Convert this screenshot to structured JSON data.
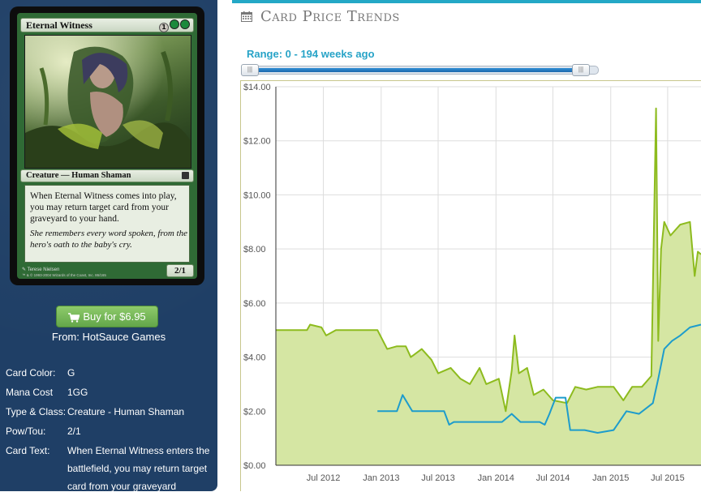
{
  "card_image": {
    "name": "Eternal Witness",
    "mana_cost_symbols": [
      "1",
      "G",
      "G"
    ],
    "type_line": "Creature — Human Shaman",
    "rules_text": "When Eternal Witness comes into play, you may return target card from your graveyard to your hand.",
    "flavor_text": "She remembers every word spoken, from the hero's oath to the baby's cry.",
    "power_toughness": "2/1",
    "artist": "Terese Nielsen",
    "copyright": "™ & © 1993-2004 Wizards of the Coast, Inc. 86/165"
  },
  "buy": {
    "label": "Buy for $6.95",
    "icon": "shopping-cart-icon",
    "from": "From: HotSauce Games"
  },
  "attributes": [
    {
      "label": "Card Color:",
      "value": "G"
    },
    {
      "label": "Mana Cost",
      "value": "1GG"
    },
    {
      "label": "Type & Class:",
      "value": "Creature - Human Shaman"
    },
    {
      "label": "Pow/Tou:",
      "value": "2/1"
    },
    {
      "label": "Card Text:",
      "value": "When Eternal Witness enters the battlefield, you may return target card from your graveyard"
    }
  ],
  "header": {
    "title": "Card Price Trends",
    "icon": "calendar-icon"
  },
  "range": {
    "label": "Range: 0 - 194 weeks ago",
    "min_weeks": 0,
    "max_weeks": 194,
    "selected_fraction": 1.0
  },
  "colors": {
    "accent": "#24a8c6",
    "paper_line": "#8dbb1e",
    "paper_fill": "#d5e6a3",
    "foil_line": "#1d9ccc",
    "sidebar_bg": "#1f3f66",
    "buy_button": "#74b858"
  },
  "chart_data": {
    "type": "area",
    "title": "",
    "xlabel": "",
    "ylabel": "",
    "ylim": [
      0,
      14
    ],
    "yticks": [
      "$0.00",
      "$2.00",
      "$4.00",
      "$6.00",
      "$8.00",
      "$10.00",
      "$12.00",
      "$14.00"
    ],
    "yticks_values": [
      0,
      2,
      4,
      6,
      8,
      10,
      12,
      14
    ],
    "xlim": [
      "2012-02-01",
      "2015-10-15"
    ],
    "xticks": [
      {
        "label": "Jul 2012",
        "date": "2012-07-01"
      },
      {
        "label": "Jan 2013",
        "date": "2013-01-01"
      },
      {
        "label": "Jul 2013",
        "date": "2013-07-01"
      },
      {
        "label": "Jan 2014",
        "date": "2014-01-01"
      },
      {
        "label": "Jul 2014",
        "date": "2014-07-01"
      },
      {
        "label": "Jan 2015",
        "date": "2015-01-01"
      },
      {
        "label": "Jul 2015",
        "date": "2015-07-01"
      }
    ],
    "grid": true,
    "series": [
      {
        "points": [
          [
            "2012-02-01",
            5.0
          ],
          [
            "2012-05-10",
            5.0
          ],
          [
            "2012-05-20",
            5.2
          ],
          [
            "2012-06-25",
            5.1
          ],
          [
            "2012-07-10",
            4.8
          ],
          [
            "2012-08-10",
            5.0
          ],
          [
            "2012-12-20",
            5.0
          ],
          [
            "2013-01-20",
            4.3
          ],
          [
            "2013-02-20",
            4.4
          ],
          [
            "2013-03-20",
            4.4
          ],
          [
            "2013-04-05",
            4.0
          ],
          [
            "2013-05-10",
            4.3
          ],
          [
            "2013-06-10",
            3.9
          ],
          [
            "2013-07-01",
            3.4
          ],
          [
            "2013-08-10",
            3.6
          ],
          [
            "2013-09-10",
            3.2
          ],
          [
            "2013-10-10",
            3.0
          ],
          [
            "2013-11-10",
            3.6
          ],
          [
            "2013-12-01",
            3.0
          ],
          [
            "2014-01-10",
            3.2
          ],
          [
            "2014-02-01",
            2.0
          ],
          [
            "2014-02-20",
            3.5
          ],
          [
            "2014-03-01",
            4.8
          ],
          [
            "2014-03-15",
            3.4
          ],
          [
            "2014-04-10",
            3.6
          ],
          [
            "2014-05-01",
            2.6
          ],
          [
            "2014-06-01",
            2.8
          ],
          [
            "2014-07-01",
            2.4
          ],
          [
            "2014-08-15",
            2.3
          ],
          [
            "2014-09-10",
            2.9
          ],
          [
            "2014-10-15",
            2.8
          ],
          [
            "2014-11-20",
            2.9
          ],
          [
            "2015-01-10",
            2.9
          ],
          [
            "2015-02-10",
            2.4
          ],
          [
            "2015-03-10",
            2.9
          ],
          [
            "2015-04-10",
            2.9
          ],
          [
            "2015-05-10",
            3.3
          ],
          [
            "2015-05-25",
            13.2
          ],
          [
            "2015-06-01",
            4.6
          ],
          [
            "2015-06-10",
            8.0
          ],
          [
            "2015-06-20",
            9.0
          ],
          [
            "2015-07-10",
            8.5
          ],
          [
            "2015-08-10",
            8.9
          ],
          [
            "2015-09-10",
            9.0
          ],
          [
            "2015-09-25",
            7.0
          ],
          [
            "2015-10-05",
            7.9
          ],
          [
            "2015-10-15",
            7.8
          ]
        ]
      },
      {
        "points": [
          [
            "2012-12-20",
            2.0
          ],
          [
            "2013-02-20",
            2.0
          ],
          [
            "2013-03-10",
            2.6
          ],
          [
            "2013-04-10",
            2.0
          ],
          [
            "2013-07-20",
            2.0
          ],
          [
            "2013-08-05",
            1.5
          ],
          [
            "2013-08-20",
            1.6
          ],
          [
            "2013-10-20",
            1.6
          ],
          [
            "2013-12-10",
            1.6
          ],
          [
            "2014-01-20",
            1.6
          ],
          [
            "2014-02-20",
            1.9
          ],
          [
            "2014-03-20",
            1.6
          ],
          [
            "2014-05-20",
            1.6
          ],
          [
            "2014-06-05",
            1.5
          ],
          [
            "2014-06-20",
            1.9
          ],
          [
            "2014-07-10",
            2.5
          ],
          [
            "2014-08-10",
            2.5
          ],
          [
            "2014-08-25",
            1.3
          ],
          [
            "2014-10-10",
            1.3
          ],
          [
            "2014-11-20",
            1.2
          ],
          [
            "2015-01-10",
            1.3
          ],
          [
            "2015-02-20",
            2.0
          ],
          [
            "2015-04-01",
            1.9
          ],
          [
            "2015-05-15",
            2.3
          ],
          [
            "2015-06-01",
            3.2
          ],
          [
            "2015-06-20",
            4.3
          ],
          [
            "2015-07-15",
            4.6
          ],
          [
            "2015-08-10",
            4.8
          ],
          [
            "2015-09-10",
            5.1
          ],
          [
            "2015-10-15",
            5.2
          ]
        ]
      }
    ]
  }
}
